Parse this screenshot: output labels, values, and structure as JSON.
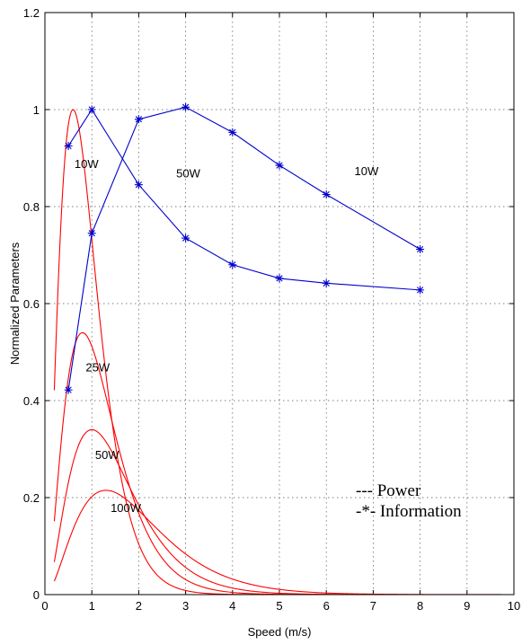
{
  "chart_data": {
    "type": "line",
    "title": "",
    "xlabel": "Speed (m/s)",
    "ylabel": "Normalized Parameters",
    "xlim": [
      0,
      10
    ],
    "ylim": [
      0,
      1.2
    ],
    "xticks": [
      "0",
      "1",
      "2",
      "3",
      "4",
      "5",
      "6",
      "7",
      "8",
      "9",
      "10"
    ],
    "yticks": [
      "0",
      "0.2",
      "0.4",
      "0.6",
      "0.8",
      "1",
      "1.2"
    ],
    "grid": true,
    "legend": {
      "position": "bottom-right",
      "entries": [
        "--- Power",
        "-*- Information"
      ]
    },
    "colors": {
      "power": "#ff0000",
      "information": "#0000cc"
    },
    "power_series": [
      {
        "label": "10W",
        "peak_x": 0.6,
        "peak_y": 1.0
      },
      {
        "label": "25W",
        "peak_x": 0.8,
        "peak_y": 0.54
      },
      {
        "label": "50W",
        "peak_x": 1.0,
        "peak_y": 0.34
      },
      {
        "label": "100W",
        "peak_x": 1.3,
        "peak_y": 0.215
      }
    ],
    "power_labels": [
      {
        "text": "10W",
        "x": 0.63,
        "y": 0.88
      },
      {
        "text": "25W",
        "x": 0.87,
        "y": 0.46
      },
      {
        "text": "50W",
        "x": 1.07,
        "y": 0.28
      },
      {
        "text": "100W",
        "x": 1.4,
        "y": 0.17
      }
    ],
    "information_series": [
      {
        "label": "10W",
        "x": [
          0.5,
          1,
          2,
          3,
          4,
          5,
          6,
          8
        ],
        "y": [
          0.422,
          0.745,
          0.98,
          1.005,
          0.953,
          0.885,
          0.825,
          0.712
        ]
      },
      {
        "label": "50W",
        "x": [
          0.5,
          1,
          2,
          3,
          4,
          5,
          6,
          8
        ],
        "y": [
          0.925,
          1.0,
          0.845,
          0.735,
          0.68,
          0.652,
          0.642,
          0.628
        ]
      }
    ],
    "information_labels": [
      {
        "text": "10W",
        "x": 6.6,
        "y": 0.865
      },
      {
        "text": "50W",
        "x": 2.8,
        "y": 0.86
      }
    ]
  }
}
